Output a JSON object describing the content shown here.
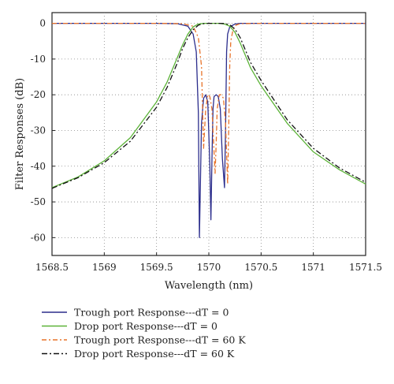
{
  "chart_data": {
    "type": "line",
    "xlabel": "Wavelength (nm)",
    "ylabel": "Filter Responses (dB)",
    "xlim": [
      1568.5,
      1571.5
    ],
    "ylim": [
      -65,
      3
    ],
    "xticks": [
      1568.5,
      1569,
      1569.5,
      1570,
      1570.5,
      1571,
      1571.5
    ],
    "xtick_labels": [
      "1568.5",
      "1569",
      "1569.5",
      "1570",
      "1570.5",
      "1571",
      "1571.5"
    ],
    "yticks": [
      0,
      -10,
      -20,
      -30,
      -40,
      -50,
      -60
    ],
    "ytick_labels": [
      "0",
      "-10",
      "-20",
      "-30",
      "-40",
      "-50",
      "-60"
    ],
    "grid": true,
    "legend_position": "bottom",
    "series": [
      {
        "name": "Trough port Response---dT = 0",
        "color": "#2b2d8c",
        "dash": "solid",
        "x": [
          1568.5,
          1569.0,
          1569.5,
          1569.7,
          1569.8,
          1569.85,
          1569.88,
          1569.9,
          1569.91,
          1569.93,
          1569.95,
          1569.97,
          1569.99,
          1570.01,
          1570.02,
          1570.03,
          1570.04,
          1570.05,
          1570.07,
          1570.09,
          1570.11,
          1570.13,
          1570.15,
          1570.16,
          1570.17,
          1570.18,
          1570.2,
          1570.25,
          1570.3,
          1570.5,
          1571.0,
          1571.5
        ],
        "y": [
          0,
          0,
          0,
          -0.1,
          -0.8,
          -3,
          -8,
          -25,
          -60,
          -28,
          -21,
          -20,
          -22,
          -40,
          -55,
          -38,
          -24,
          -20.5,
          -20,
          -20.5,
          -24,
          -38,
          -46,
          -30,
          -8,
          -3,
          -1,
          -0.2,
          0,
          0,
          0,
          0
        ]
      },
      {
        "name": "Drop port Response---dT = 0",
        "color": "#5cb338",
        "dash": "solid",
        "x": [
          1568.5,
          1568.75,
          1569.0,
          1569.25,
          1569.5,
          1569.6,
          1569.7,
          1569.75,
          1569.8,
          1569.85,
          1569.9,
          1569.95,
          1570.0,
          1570.05,
          1570.1,
          1570.15,
          1570.2,
          1570.25,
          1570.3,
          1570.35,
          1570.4,
          1570.5,
          1570.75,
          1571.0,
          1571.25,
          1571.5
        ],
        "y": [
          -46,
          -43,
          -38.5,
          -32,
          -22,
          -16.5,
          -9.5,
          -6,
          -3,
          -1,
          -0.2,
          0,
          0,
          0,
          0,
          -0.2,
          -0.8,
          -2.5,
          -5.5,
          -9,
          -12.5,
          -17.5,
          -28,
          -36,
          -41,
          -45
        ]
      },
      {
        "name": "Trough port Response---dT = 60 K",
        "color": "#e8732a",
        "dash": "6,3,2,3",
        "x": [
          1568.5,
          1569.0,
          1569.5,
          1569.75,
          1569.85,
          1569.9,
          1569.93,
          1569.95,
          1569.97,
          1569.99,
          1570.01,
          1570.03,
          1570.05,
          1570.06,
          1570.07,
          1570.08,
          1570.1,
          1570.12,
          1570.14,
          1570.16,
          1570.18,
          1570.19,
          1570.2,
          1570.21,
          1570.23,
          1570.26,
          1570.3,
          1570.5,
          1571.0,
          1571.5
        ],
        "y": [
          0,
          0,
          0,
          -0.1,
          -0.8,
          -4,
          -12,
          -35,
          -24,
          -20,
          -20.5,
          -24,
          -36,
          -42,
          -34,
          -24,
          -20,
          -20,
          -21,
          -28,
          -45,
          -30,
          -12,
          -5,
          -2,
          -0.5,
          -0.1,
          0,
          0,
          0
        ]
      },
      {
        "name": "Drop port Response---dT = 60 K",
        "color": "#111111",
        "dash": "7,3,2,3",
        "x": [
          1568.5,
          1568.75,
          1569.0,
          1569.25,
          1569.5,
          1569.6,
          1569.7,
          1569.75,
          1569.8,
          1569.85,
          1569.9,
          1569.95,
          1570.0,
          1570.05,
          1570.1,
          1570.15,
          1570.2,
          1570.25,
          1570.3,
          1570.35,
          1570.4,
          1570.5,
          1570.75,
          1571.0,
          1571.25,
          1571.5
        ],
        "y": [
          -46.2,
          -43.2,
          -39,
          -33,
          -23.5,
          -18,
          -11,
          -7,
          -4,
          -1.8,
          -0.5,
          -0.1,
          0,
          0,
          0,
          -0.05,
          -0.4,
          -1.6,
          -4,
          -7.5,
          -11,
          -16,
          -27,
          -35,
          -40.5,
          -44.5
        ]
      }
    ]
  }
}
